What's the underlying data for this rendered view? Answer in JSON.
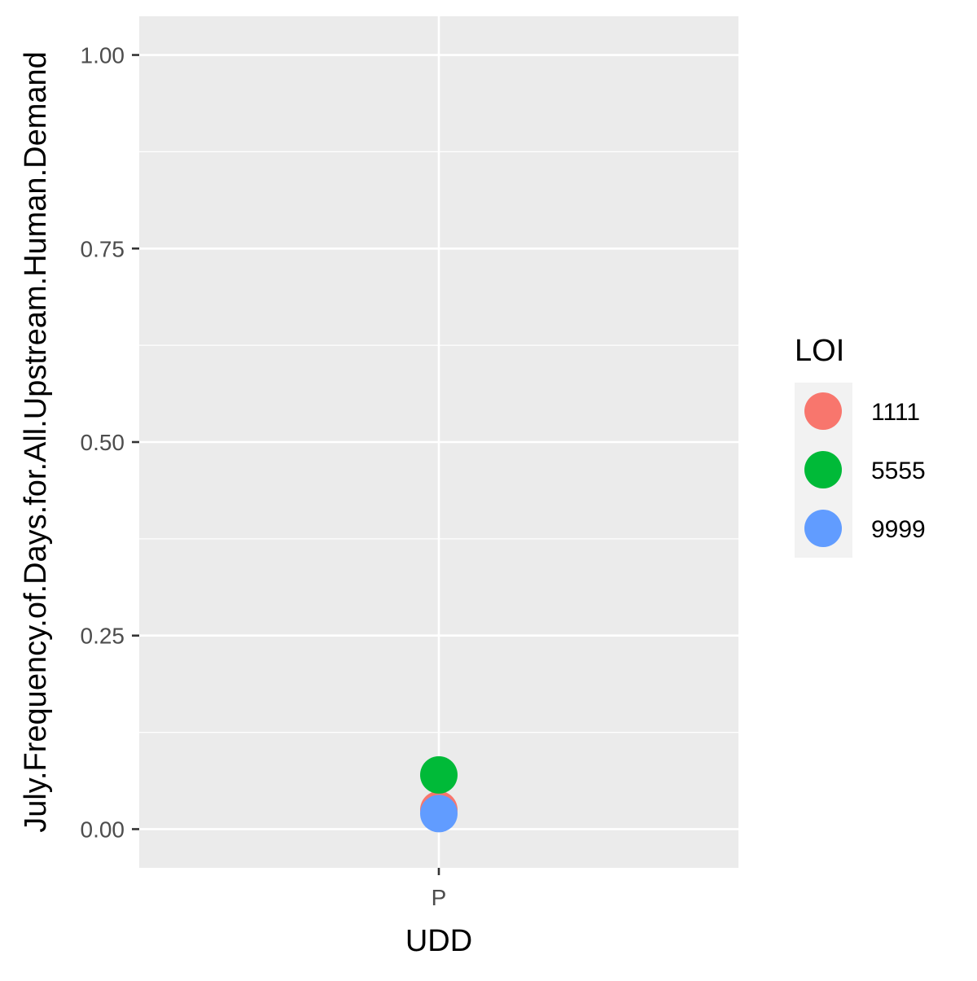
{
  "chart_data": {
    "type": "scatter",
    "xlabel": "UDD",
    "ylabel": "July.Frequency.of.Days.for.All.Upstream.Human.Demand",
    "categories": [
      "P"
    ],
    "y_ticks": [
      "0.00",
      "0.25",
      "0.50",
      "0.75",
      "1.00"
    ],
    "ylim": [
      -0.05,
      1.05
    ],
    "grid": true,
    "legend_title": "LOI",
    "legend_position": "right",
    "series": [
      {
        "name": "1111",
        "color": "#F8766D",
        "points": [
          {
            "x": "P",
            "y": 0.025
          }
        ]
      },
      {
        "name": "5555",
        "color": "#00BA38",
        "points": [
          {
            "x": "P",
            "y": 0.07
          }
        ]
      },
      {
        "name": "9999",
        "color": "#619CFF",
        "points": [
          {
            "x": "P",
            "y": 0.02
          }
        ]
      }
    ]
  }
}
